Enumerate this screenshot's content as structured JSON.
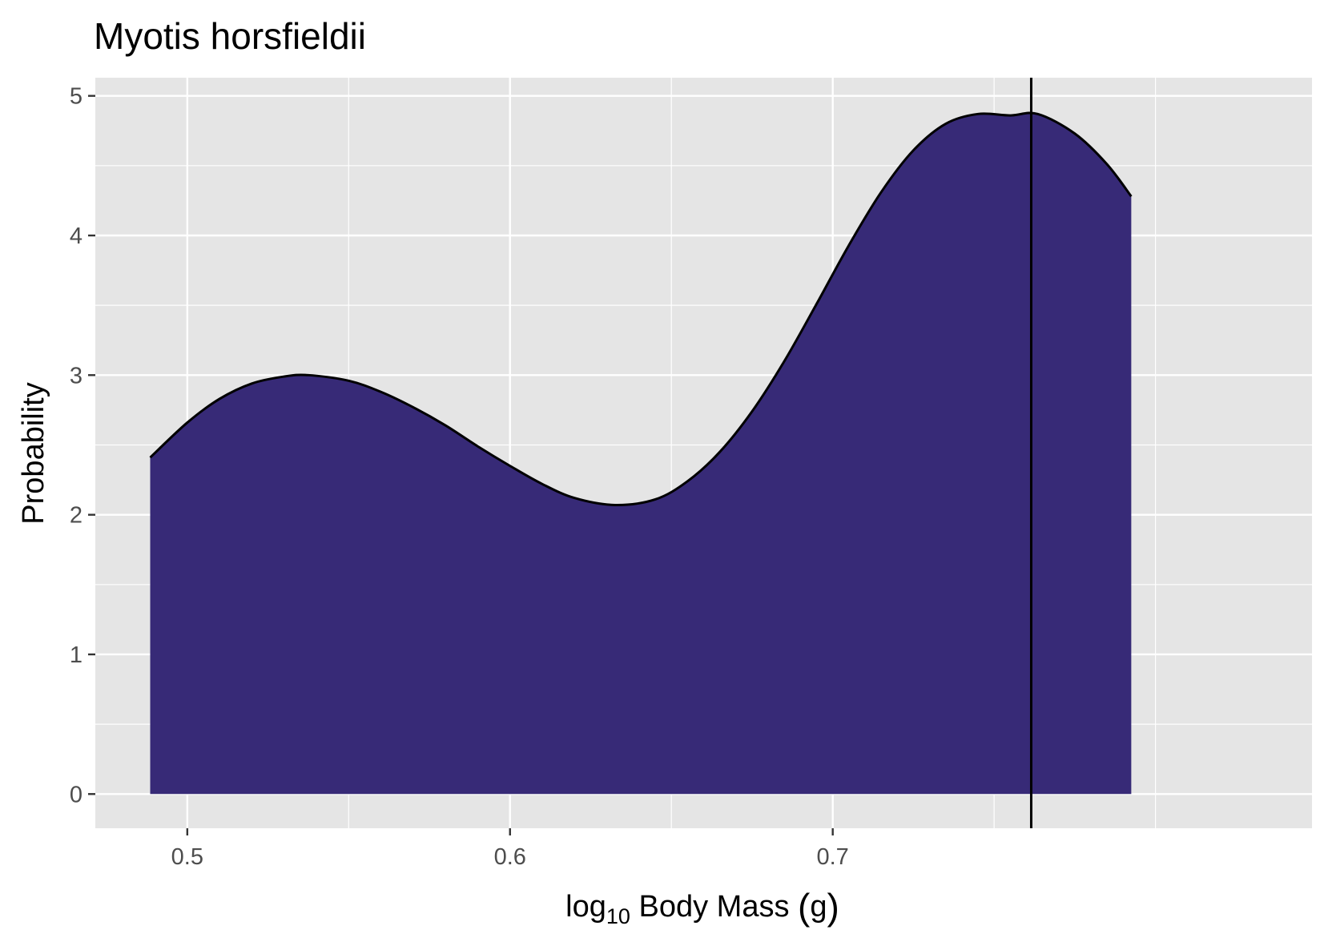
{
  "chart_data": {
    "type": "area",
    "title": "Myotis horsfieldii",
    "xlabel": {
      "prefix": "log",
      "subscript": "10",
      "main": " Body Mass ",
      "open_paren": "(",
      "unit": "g",
      "close_paren": ")"
    },
    "ylabel": "Probability",
    "xlim": [
      0.4715,
      0.8485
    ],
    "ylim": [
      -0.245,
      5.13
    ],
    "x_ticks": [
      0.5,
      0.6,
      0.7
    ],
    "x_tick_labels": [
      "0.5",
      "0.6",
      "0.7"
    ],
    "x_minor_ticks": [
      0.55,
      0.65,
      0.75,
      0.8
    ],
    "y_ticks": [
      0,
      1,
      2,
      3,
      4,
      5
    ],
    "y_tick_labels": [
      "0",
      "1",
      "2",
      "3",
      "4",
      "5"
    ],
    "y_minor_ticks": [
      0.5,
      1.5,
      2.5,
      3.5,
      4.5
    ],
    "series": [
      {
        "x": [
          0.4885,
          0.5,
          0.51,
          0.52,
          0.53,
          0.5375,
          0.55,
          0.56,
          0.57,
          0.58,
          0.59,
          0.6,
          0.61,
          0.62,
          0.6325,
          0.645,
          0.655,
          0.665,
          0.675,
          0.685,
          0.695,
          0.705,
          0.715,
          0.725,
          0.735,
          0.745,
          0.755,
          0.7635,
          0.775,
          0.785,
          0.7925
        ],
        "y": [
          2.41,
          2.66,
          2.83,
          2.94,
          2.99,
          3.0,
          2.96,
          2.88,
          2.77,
          2.64,
          2.49,
          2.35,
          2.22,
          2.12,
          2.07,
          2.11,
          2.24,
          2.45,
          2.74,
          3.1,
          3.51,
          3.93,
          4.31,
          4.61,
          4.8,
          4.87,
          4.86,
          4.87,
          4.73,
          4.51,
          4.28
        ]
      }
    ],
    "vline_x": 0.7615,
    "fill_color": "#372a77",
    "line_color": "#000000",
    "panel_background": "#e5e5e5",
    "grid_color": "#ffffff",
    "grid": true,
    "legend": "none"
  }
}
